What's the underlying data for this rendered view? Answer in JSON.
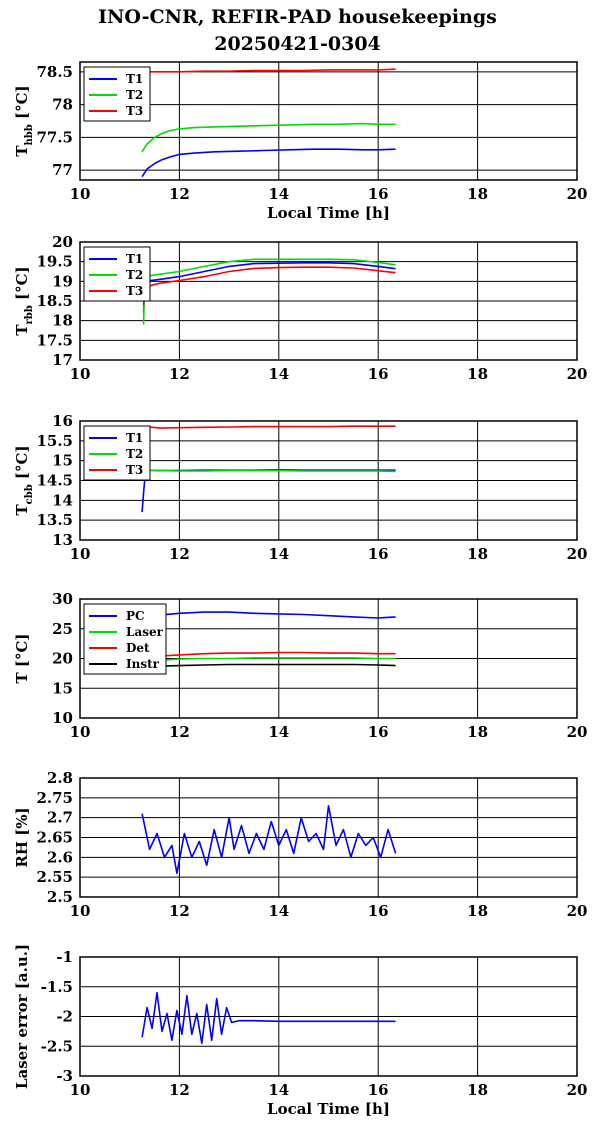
{
  "title_line1": "INO-CNR, REFIR-PAD housekeepings",
  "title_line2": "20250421-0304",
  "chart_data": [
    {
      "type": "line",
      "ylabel": "T_hbb [°C]",
      "ylabel_main": "T",
      "ylabel_sub": "hbb",
      "ylabel_suffix": " [°C]",
      "xlabel": "Local Time [h]",
      "xlim": [
        10,
        20
      ],
      "ylim": [
        76.85,
        78.65
      ],
      "xticks": [
        "10",
        "12",
        "14",
        "16",
        "18",
        "20"
      ],
      "yticks": [
        "77",
        "77.5",
        "78",
        "78.5"
      ],
      "grid": true,
      "legend_position": "top-left",
      "series": [
        {
          "name": "T1",
          "color": "#0000ff",
          "x": [
            11.25,
            11.35,
            11.5,
            11.65,
            11.8,
            12.0,
            12.3,
            12.7,
            13.2,
            13.7,
            14.2,
            14.7,
            15.2,
            15.7,
            16.0,
            16.35
          ],
          "y": [
            76.9,
            77.02,
            77.1,
            77.16,
            77.2,
            77.24,
            77.26,
            77.28,
            77.29,
            77.3,
            77.31,
            77.32,
            77.32,
            77.31,
            77.31,
            77.32
          ]
        },
        {
          "name": "T2",
          "color": "#00dd00",
          "x": [
            11.25,
            11.35,
            11.5,
            11.65,
            11.8,
            12.0,
            12.3,
            12.7,
            13.2,
            13.7,
            14.2,
            14.7,
            15.2,
            15.7,
            16.0,
            16.35
          ],
          "y": [
            77.28,
            77.4,
            77.5,
            77.56,
            77.6,
            77.63,
            77.65,
            77.66,
            77.67,
            77.68,
            77.69,
            77.7,
            77.7,
            77.71,
            77.7,
            77.7
          ]
        },
        {
          "name": "T3",
          "color": "#ff0000",
          "x": [
            11.25,
            11.6,
            12.0,
            12.5,
            13.0,
            13.5,
            14.0,
            14.5,
            15.0,
            15.5,
            16.0,
            16.35
          ],
          "y": [
            78.5,
            78.5,
            78.5,
            78.51,
            78.51,
            78.52,
            78.52,
            78.52,
            78.53,
            78.53,
            78.53,
            78.54
          ]
        }
      ]
    },
    {
      "type": "line",
      "ylabel": "T_rbb [°C]",
      "ylabel_main": "T",
      "ylabel_sub": "rbb",
      "ylabel_suffix": " [°C]",
      "xlabel": "",
      "xlim": [
        10,
        20
      ],
      "ylim": [
        17,
        20
      ],
      "xticks": [
        "10",
        "12",
        "14",
        "16",
        "18",
        "20"
      ],
      "yticks": [
        "17",
        "17.5",
        "18",
        "18.5",
        "19",
        "19.5",
        "20"
      ],
      "grid": true,
      "legend_position": "top-left",
      "series": [
        {
          "name": "T1",
          "color": "#0000ff",
          "x": [
            11.28,
            11.3,
            11.6,
            12.0,
            12.5,
            13.0,
            13.5,
            14.0,
            14.5,
            15.0,
            15.5,
            16.0,
            16.35
          ],
          "y": [
            18.2,
            19.0,
            19.05,
            19.12,
            19.25,
            19.38,
            19.45,
            19.46,
            19.47,
            19.47,
            19.45,
            19.38,
            19.32
          ]
        },
        {
          "name": "T2",
          "color": "#00dd00",
          "x": [
            11.28,
            11.3,
            11.6,
            12.0,
            12.5,
            13.0,
            13.5,
            14.0,
            14.5,
            15.0,
            15.5,
            16.0,
            16.35
          ],
          "y": [
            17.9,
            19.12,
            19.18,
            19.25,
            19.38,
            19.5,
            19.56,
            19.56,
            19.56,
            19.56,
            19.55,
            19.48,
            19.42
          ]
        },
        {
          "name": "T3",
          "color": "#ff0000",
          "x": [
            11.28,
            11.3,
            11.6,
            12.0,
            12.5,
            13.0,
            13.5,
            14.0,
            14.5,
            15.0,
            15.5,
            16.0,
            16.35
          ],
          "y": [
            18.4,
            18.85,
            18.95,
            19.02,
            19.12,
            19.25,
            19.33,
            19.35,
            19.36,
            19.36,
            19.34,
            19.27,
            19.22
          ]
        }
      ]
    },
    {
      "type": "line",
      "ylabel": "T_cbb [°C]",
      "ylabel_main": "T",
      "ylabel_sub": "cbb",
      "ylabel_suffix": " [°C]",
      "xlabel": "",
      "xlim": [
        10,
        20
      ],
      "ylim": [
        13,
        16
      ],
      "xticks": [
        "10",
        "12",
        "14",
        "16",
        "18",
        "20"
      ],
      "yticks": [
        "13",
        "13.5",
        "14",
        "14.5",
        "15",
        "15.5",
        "16"
      ],
      "grid": true,
      "legend_position": "top-left",
      "series": [
        {
          "name": "T1",
          "color": "#0000ff",
          "x": [
            11.25,
            11.28,
            11.32,
            11.6,
            12.0,
            12.5,
            13.0,
            13.5,
            14.0,
            14.5,
            15.0,
            15.5,
            16.0,
            16.35
          ],
          "y": [
            13.7,
            14.2,
            14.76,
            14.75,
            14.75,
            14.76,
            14.76,
            14.76,
            14.77,
            14.76,
            14.76,
            14.76,
            14.76,
            14.76
          ]
        },
        {
          "name": "T2",
          "color": "#00dd00",
          "x": [
            11.32,
            11.6,
            12.0,
            12.5,
            13.0,
            13.5,
            14.0,
            14.5,
            15.0,
            15.5,
            16.0,
            16.35
          ],
          "y": [
            14.76,
            14.75,
            14.74,
            14.74,
            14.75,
            14.75,
            14.75,
            14.74,
            14.74,
            14.74,
            14.74,
            14.73
          ]
        },
        {
          "name": "T3",
          "color": "#ff0000",
          "x": [
            11.32,
            11.6,
            12.0,
            12.5,
            13.0,
            13.5,
            14.0,
            14.5,
            15.0,
            15.5,
            16.0,
            16.35
          ],
          "y": [
            15.86,
            15.82,
            15.83,
            15.84,
            15.85,
            15.86,
            15.86,
            15.86,
            15.86,
            15.87,
            15.87,
            15.87
          ]
        }
      ]
    },
    {
      "type": "line",
      "ylabel": "T [°C]",
      "ylabel_main": "T [°C]",
      "ylabel_sub": "",
      "ylabel_suffix": "",
      "xlabel": "",
      "xlim": [
        10,
        20
      ],
      "ylim": [
        10,
        30
      ],
      "xticks": [
        "10",
        "12",
        "14",
        "16",
        "18",
        "20"
      ],
      "yticks": [
        "10",
        "15",
        "20",
        "25",
        "30"
      ],
      "grid": true,
      "legend_position": "top-left",
      "series": [
        {
          "name": "PC",
          "color": "#0000ff",
          "x": [
            11.25,
            11.6,
            12.0,
            12.5,
            13.0,
            13.5,
            14.0,
            14.5,
            15.0,
            15.5,
            16.0,
            16.35
          ],
          "y": [
            27.0,
            27.3,
            27.6,
            27.8,
            27.8,
            27.6,
            27.5,
            27.4,
            27.2,
            27.0,
            26.8,
            27.0
          ]
        },
        {
          "name": "Laser",
          "color": "#00dd00",
          "x": [
            11.25,
            11.6,
            12.0,
            12.5,
            13.0,
            13.5,
            14.0,
            14.5,
            15.0,
            15.5,
            16.0,
            16.35
          ],
          "y": [
            19.6,
            19.7,
            19.9,
            20.0,
            20.0,
            20.1,
            20.1,
            20.1,
            20.1,
            20.1,
            20.0,
            20.0
          ]
        },
        {
          "name": "Det",
          "color": "#ff0000",
          "x": [
            11.25,
            11.6,
            12.0,
            12.5,
            13.0,
            13.5,
            14.0,
            14.5,
            15.0,
            15.5,
            16.0,
            16.35
          ],
          "y": [
            20.2,
            20.4,
            20.6,
            20.8,
            20.9,
            20.9,
            21.0,
            21.0,
            20.9,
            20.9,
            20.8,
            20.8
          ]
        },
        {
          "name": "Instr",
          "color": "#000000",
          "x": [
            11.25,
            11.6,
            12.0,
            12.5,
            13.0,
            13.5,
            14.0,
            14.5,
            15.0,
            15.5,
            16.0,
            16.35
          ],
          "y": [
            18.6,
            18.7,
            18.8,
            18.9,
            19.0,
            19.0,
            19.0,
            19.0,
            19.0,
            19.0,
            18.9,
            18.8
          ]
        }
      ]
    },
    {
      "type": "line",
      "ylabel": "RH [%]",
      "ylabel_main": "RH [%]",
      "ylabel_sub": "",
      "ylabel_suffix": "",
      "xlabel": "",
      "xlim": [
        10,
        20
      ],
      "ylim": [
        2.5,
        2.8
      ],
      "xticks": [
        "10",
        "12",
        "14",
        "16",
        "18",
        "20"
      ],
      "yticks": [
        "2.5",
        "2.55",
        "2.6",
        "2.65",
        "2.7",
        "2.75",
        "2.8"
      ],
      "grid": true,
      "legend_position": "",
      "series": [
        {
          "name": "",
          "color": "#0000ff",
          "x": [
            11.25,
            11.4,
            11.55,
            11.7,
            11.85,
            11.95,
            12.1,
            12.25,
            12.4,
            12.55,
            12.7,
            12.85,
            13.0,
            13.1,
            13.25,
            13.4,
            13.55,
            13.7,
            13.85,
            14.0,
            14.15,
            14.3,
            14.45,
            14.6,
            14.75,
            14.9,
            15.0,
            15.15,
            15.3,
            15.45,
            15.6,
            15.75,
            15.9,
            16.05,
            16.2,
            16.35
          ],
          "y": [
            2.71,
            2.62,
            2.66,
            2.6,
            2.63,
            2.56,
            2.66,
            2.6,
            2.64,
            2.58,
            2.67,
            2.6,
            2.7,
            2.62,
            2.68,
            2.61,
            2.66,
            2.62,
            2.69,
            2.63,
            2.67,
            2.61,
            2.7,
            2.64,
            2.66,
            2.62,
            2.73,
            2.63,
            2.67,
            2.6,
            2.66,
            2.63,
            2.65,
            2.6,
            2.67,
            2.61
          ]
        }
      ]
    },
    {
      "type": "line",
      "ylabel": "Laser error [a.u.]",
      "ylabel_main": "Laser error [a.u.]",
      "ylabel_sub": "",
      "ylabel_suffix": "",
      "xlabel": "Local Time [h]",
      "xlim": [
        10,
        20
      ],
      "ylim": [
        -3,
        -1
      ],
      "xticks": [
        "10",
        "12",
        "14",
        "16",
        "18",
        "20"
      ],
      "yticks": [
        "-3",
        "-2.5",
        "-2",
        "-1.5",
        "-1"
      ],
      "grid": true,
      "legend_position": "",
      "series": [
        {
          "name": "",
          "color": "#0000ff",
          "x": [
            11.25,
            11.35,
            11.45,
            11.55,
            11.65,
            11.75,
            11.85,
            11.95,
            12.05,
            12.15,
            12.25,
            12.35,
            12.45,
            12.55,
            12.65,
            12.75,
            12.85,
            12.95,
            13.05,
            13.2,
            13.5,
            14.0,
            14.5,
            15.0,
            15.5,
            16.0,
            16.35
          ],
          "y": [
            -2.35,
            -1.85,
            -2.2,
            -1.6,
            -2.25,
            -1.95,
            -2.4,
            -1.9,
            -2.3,
            -1.65,
            -2.3,
            -1.95,
            -2.45,
            -1.8,
            -2.4,
            -1.7,
            -2.3,
            -1.85,
            -2.1,
            -2.07,
            -2.07,
            -2.08,
            -2.08,
            -2.08,
            -2.08,
            -2.08,
            -2.08
          ]
        }
      ]
    }
  ]
}
